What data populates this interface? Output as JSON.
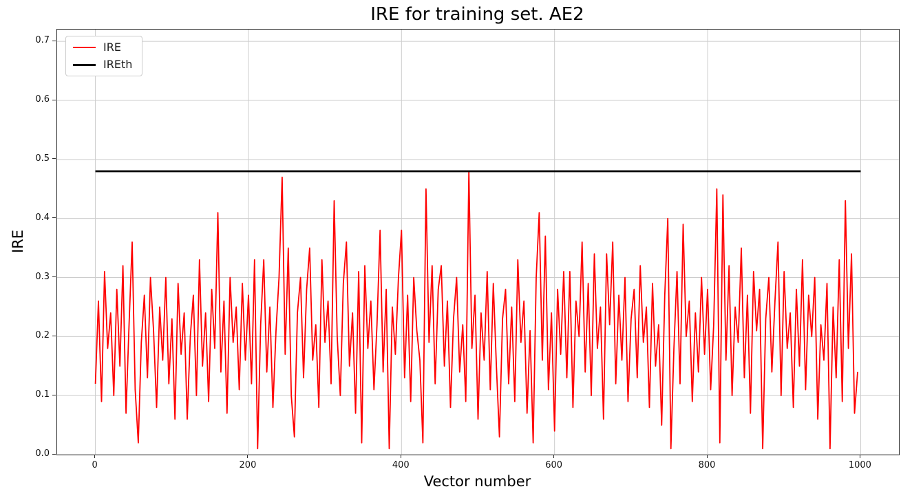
{
  "figure": {
    "title": "IRE for training set. AE2",
    "xlabel": "Vector number",
    "ylabel": "IRE"
  },
  "legend": {
    "position": "upper left",
    "entries": [
      {
        "label": "IRE",
        "color": "#ff0000"
      },
      {
        "label": "IREth",
        "color": "#000000"
      }
    ]
  },
  "colors": {
    "ire_line": "#ff0000",
    "threshold_line": "#000000",
    "grid": "#cccccc",
    "spine": "#2b2b2b",
    "background": "#ffffff"
  },
  "chart_data": {
    "type": "line",
    "title": "IRE for training set. AE2",
    "xlabel": "Vector number",
    "ylabel": "IRE",
    "xlim": [
      -50,
      1050
    ],
    "ylim": [
      0,
      0.72
    ],
    "x_ticks": [
      0,
      200,
      400,
      600,
      800,
      1000
    ],
    "y_ticks": [
      0.0,
      0.1,
      0.2,
      0.3,
      0.4,
      0.5,
      0.6,
      0.7
    ],
    "grid": true,
    "legend_position": "upper left",
    "series": [
      {
        "name": "IRE",
        "color": "#ff0000",
        "style": "noisy-line",
        "line_width": 1.8,
        "x_start": 0,
        "x_step": 4,
        "values": [
          0.12,
          0.26,
          0.09,
          0.31,
          0.18,
          0.24,
          0.1,
          0.28,
          0.15,
          0.32,
          0.07,
          0.22,
          0.36,
          0.11,
          0.02,
          0.19,
          0.27,
          0.13,
          0.3,
          0.21,
          0.08,
          0.25,
          0.16,
          0.3,
          0.12,
          0.23,
          0.06,
          0.29,
          0.17,
          0.24,
          0.06,
          0.2,
          0.27,
          0.1,
          0.33,
          0.15,
          0.24,
          0.09,
          0.28,
          0.18,
          0.41,
          0.14,
          0.26,
          0.07,
          0.3,
          0.19,
          0.25,
          0.11,
          0.29,
          0.16,
          0.27,
          0.12,
          0.33,
          0.01,
          0.22,
          0.33,
          0.14,
          0.25,
          0.08,
          0.21,
          0.3,
          0.47,
          0.17,
          0.35,
          0.1,
          0.03,
          0.24,
          0.3,
          0.13,
          0.28,
          0.35,
          0.16,
          0.22,
          0.08,
          0.33,
          0.19,
          0.26,
          0.12,
          0.43,
          0.2,
          0.1,
          0.29,
          0.36,
          0.15,
          0.24,
          0.07,
          0.31,
          0.02,
          0.32,
          0.18,
          0.26,
          0.11,
          0.22,
          0.38,
          0.14,
          0.28,
          0.01,
          0.25,
          0.17,
          0.3,
          0.38,
          0.13,
          0.27,
          0.09,
          0.3,
          0.21,
          0.16,
          0.02,
          0.45,
          0.19,
          0.32,
          0.12,
          0.28,
          0.32,
          0.15,
          0.26,
          0.08,
          0.23,
          0.3,
          0.14,
          0.22,
          0.09,
          0.48,
          0.18,
          0.27,
          0.06,
          0.24,
          0.16,
          0.31,
          0.11,
          0.29,
          0.15,
          0.03,
          0.23,
          0.28,
          0.12,
          0.25,
          0.09,
          0.33,
          0.19,
          0.26,
          0.07,
          0.21,
          0.02,
          0.3,
          0.41,
          0.16,
          0.37,
          0.11,
          0.24,
          0.04,
          0.28,
          0.17,
          0.31,
          0.13,
          0.31,
          0.08,
          0.26,
          0.2,
          0.36,
          0.14,
          0.29,
          0.1,
          0.34,
          0.18,
          0.25,
          0.06,
          0.34,
          0.22,
          0.36,
          0.12,
          0.27,
          0.16,
          0.3,
          0.09,
          0.23,
          0.28,
          0.13,
          0.32,
          0.19,
          0.25,
          0.08,
          0.29,
          0.15,
          0.22,
          0.05,
          0.27,
          0.4,
          0.01,
          0.18,
          0.31,
          0.12,
          0.39,
          0.2,
          0.26,
          0.09,
          0.24,
          0.14,
          0.3,
          0.17,
          0.28,
          0.11,
          0.22,
          0.45,
          0.02,
          0.44,
          0.16,
          0.32,
          0.1,
          0.25,
          0.19,
          0.35,
          0.13,
          0.27,
          0.07,
          0.31,
          0.21,
          0.28,
          0.01,
          0.23,
          0.3,
          0.14,
          0.26,
          0.36,
          0.1,
          0.31,
          0.18,
          0.24,
          0.08,
          0.28,
          0.15,
          0.33,
          0.11,
          0.27,
          0.2,
          0.3,
          0.06,
          0.22,
          0.16,
          0.29,
          0.01,
          0.25,
          0.13,
          0.33,
          0.09,
          0.43,
          0.18,
          0.34,
          0.07,
          0.14
        ]
      },
      {
        "name": "IREth",
        "color": "#000000",
        "style": "hline",
        "line_width": 2.8,
        "y": 0.48,
        "x_range": [
          0,
          1000
        ]
      }
    ]
  }
}
